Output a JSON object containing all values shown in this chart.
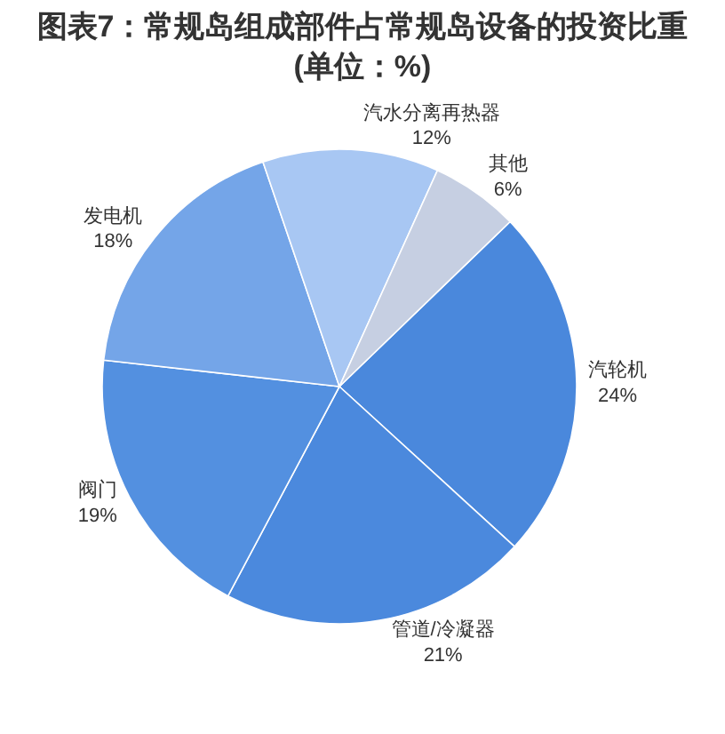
{
  "chart_data": {
    "type": "pie",
    "title": "图表7：常规岛组成部件占常规岛设备的投资比重\n(单位：%)",
    "categories": [
      "汽轮机",
      "管道/冷凝器",
      "阀门",
      "发电机",
      "汽水分离再热器",
      "其他"
    ],
    "values": [
      24,
      21,
      19,
      18,
      12,
      6
    ],
    "value_labels": [
      "24%",
      "21%",
      "19%",
      "18%",
      "12%",
      "6%"
    ],
    "colors": [
      "#4a88dc",
      "#4b89dd",
      "#5390e0",
      "#74a5e8",
      "#a8c7f3",
      "#c6cfe2"
    ]
  }
}
